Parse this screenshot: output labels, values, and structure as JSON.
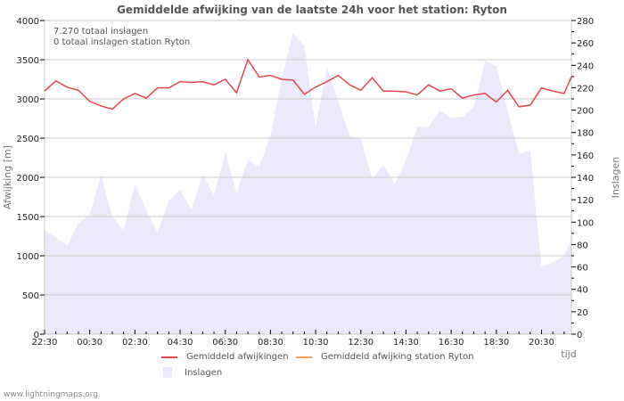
{
  "header": {
    "title": "Gemiddelde afwijking van de laatste 24h voor het station: Ryton"
  },
  "info": {
    "total_strikes": "7.270 totaal inslagen",
    "station_strikes": "0 totaal inslagen station Ryton"
  },
  "legend": {
    "series1": "Gemiddeld afwijkingen",
    "series2": "Gemiddeld afwijking station Ryton",
    "series3": "Inslagen"
  },
  "axes": {
    "left_title": "Afwijking  [m]",
    "right_title": "Inslagen",
    "x_title": "tijd"
  },
  "footer": {
    "source": "www.lightningmaps.org"
  },
  "colors": {
    "line": "#e8434f",
    "station_line": "#f5a05a",
    "area": "#eaeafc",
    "grid": "#c8c8c8"
  },
  "chart_data": {
    "type": "line",
    "title": "Gemiddelde afwijking van de laatste 24h voor het station: Ryton",
    "xlabel": "tijd",
    "ylabel": "Afwijking  [m]",
    "y2label": "Inslagen",
    "ylim": [
      0,
      4000
    ],
    "y2lim": [
      0,
      280
    ],
    "yticks": [
      0,
      500,
      1000,
      1500,
      2000,
      2500,
      3000,
      3500,
      4000
    ],
    "y2ticks": [
      0,
      20,
      40,
      60,
      80,
      100,
      120,
      140,
      160,
      180,
      200,
      220,
      240,
      260,
      280
    ],
    "xticks": [
      "22:30",
      "00:30",
      "02:30",
      "04:30",
      "06:30",
      "08:30",
      "10:30",
      "12:30",
      "14:30",
      "16:30",
      "18:30",
      "20:30"
    ],
    "grid": true,
    "legend_position": "bottom",
    "interval_minutes": 30,
    "series": [
      {
        "name": "Gemiddeld afwijkingen",
        "axis": "left",
        "type": "line",
        "values": [
          3100,
          3230,
          3150,
          3110,
          2970,
          2910,
          2870,
          3000,
          3070,
          3010,
          3140,
          3140,
          3220,
          3210,
          3220,
          3180,
          3250,
          3080,
          3500,
          3280,
          3300,
          3250,
          3240,
          3060,
          3150,
          3220,
          3300,
          3180,
          3110,
          3270,
          3100,
          3100,
          3090,
          3050,
          3180,
          3100,
          3130,
          3010,
          3050,
          3070,
          2960,
          3110,
          2900,
          2920,
          3140,
          3100,
          3070,
          3280
        ]
      },
      {
        "name": "Gemiddeld afwijking station Ryton",
        "axis": "left",
        "type": "line",
        "values": []
      },
      {
        "name": "Inslagen",
        "axis": "right",
        "type": "area",
        "values": [
          93,
          86,
          79,
          99,
          107,
          142,
          105,
          93,
          134,
          111,
          91,
          119,
          129,
          111,
          142,
          124,
          162,
          126,
          156,
          149,
          177,
          228,
          269,
          257,
          185,
          238,
          208,
          177,
          174,
          139,
          151,
          134,
          155,
          185,
          185,
          200,
          193,
          194,
          203,
          244,
          239,
          200,
          161,
          164,
          60,
          64,
          70,
          85
        ]
      }
    ]
  }
}
